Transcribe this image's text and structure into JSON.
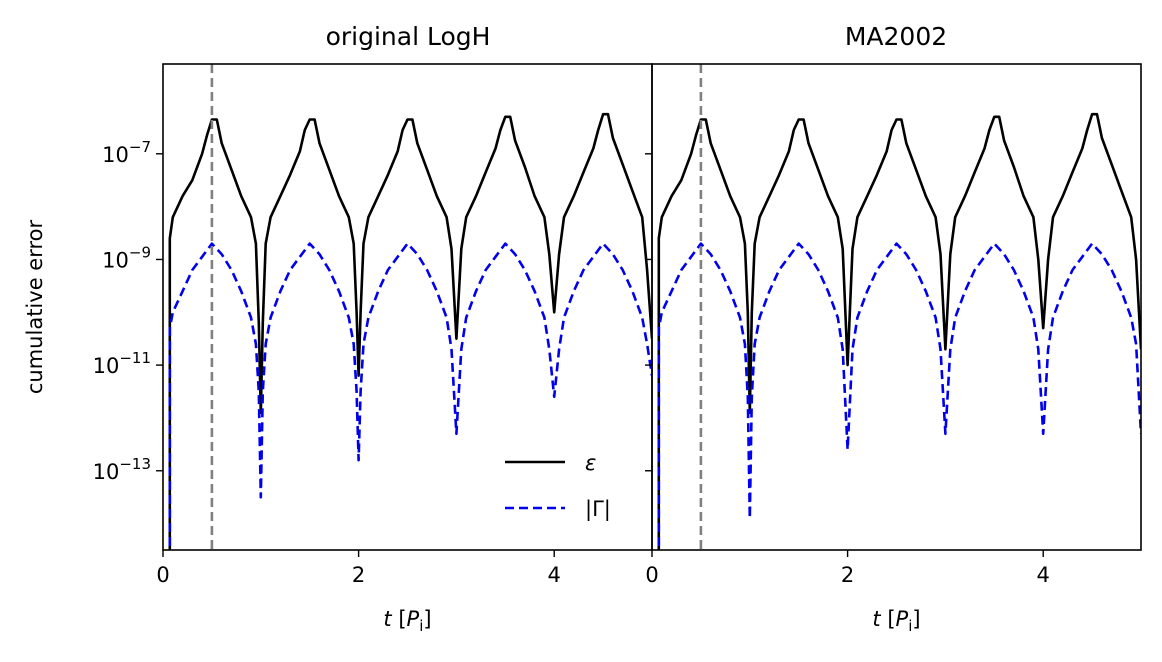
{
  "chart_data": [
    {
      "type": "line",
      "title": "original LogH",
      "xlabel_var": "t",
      "xlabel_unit": "P",
      "xlabel_sub": "i",
      "ylabel": "cumulative error",
      "xlim": [
        0,
        5
      ],
      "ylim_log10": [
        -14.5,
        -5.3
      ],
      "yscale": "log",
      "xticks": [
        0,
        2,
        4
      ],
      "yticks_exp": [
        -7,
        -9,
        -11,
        -13
      ],
      "vline_x": 0.5,
      "legend": {
        "position": "lower-right",
        "entries": [
          "ε",
          "|Γ|"
        ]
      },
      "series": [
        {
          "name": "ε",
          "style": "solid",
          "color": "#000000",
          "x": [
            0.07,
            0.1,
            0.2,
            0.3,
            0.4,
            0.45,
            0.5,
            0.55,
            0.6,
            0.7,
            0.8,
            0.9,
            0.95,
            0.98,
            1.0,
            1.02,
            1.05,
            1.1,
            1.2,
            1.3,
            1.4,
            1.45,
            1.5,
            1.55,
            1.6,
            1.7,
            1.8,
            1.9,
            1.95,
            1.98,
            2.0,
            2.02,
            2.05,
            2.1,
            2.2,
            2.3,
            2.4,
            2.45,
            2.5,
            2.55,
            2.6,
            2.7,
            2.8,
            2.9,
            2.95,
            3.0,
            3.05,
            3.1,
            3.2,
            3.3,
            3.4,
            3.45,
            3.5,
            3.55,
            3.6,
            3.7,
            3.8,
            3.9,
            3.95,
            4.0,
            4.05,
            4.1,
            4.2,
            4.3,
            4.4,
            4.45,
            4.5,
            4.55,
            4.6,
            4.7,
            4.8,
            4.9,
            4.95,
            5.0
          ],
          "log10": [
            -8.6,
            -8.2,
            -7.8,
            -7.5,
            -7.0,
            -6.65,
            -6.35,
            -6.35,
            -6.8,
            -7.3,
            -7.8,
            -8.2,
            -8.7,
            -10.2,
            -11.9,
            -10.2,
            -8.7,
            -8.2,
            -7.8,
            -7.4,
            -6.95,
            -6.55,
            -6.35,
            -6.35,
            -6.8,
            -7.3,
            -7.8,
            -8.2,
            -8.7,
            -10.0,
            -11.2,
            -10.0,
            -8.7,
            -8.2,
            -7.8,
            -7.4,
            -6.95,
            -6.55,
            -6.35,
            -6.35,
            -6.8,
            -7.3,
            -7.8,
            -8.2,
            -8.8,
            -10.5,
            -8.8,
            -8.2,
            -7.8,
            -7.35,
            -6.9,
            -6.55,
            -6.3,
            -6.3,
            -6.75,
            -7.25,
            -7.8,
            -8.2,
            -8.9,
            -10.0,
            -8.9,
            -8.2,
            -7.8,
            -7.35,
            -6.9,
            -6.55,
            -6.25,
            -6.25,
            -6.7,
            -7.2,
            -7.7,
            -8.2,
            -9.2,
            -10.5
          ]
        },
        {
          "name": "|Γ|",
          "style": "dashed",
          "color": "#0000ee",
          "x": [
            0.07,
            0.1,
            0.2,
            0.3,
            0.4,
            0.5,
            0.6,
            0.7,
            0.8,
            0.9,
            0.95,
            0.98,
            1.0,
            1.02,
            1.05,
            1.1,
            1.2,
            1.3,
            1.4,
            1.5,
            1.6,
            1.7,
            1.8,
            1.9,
            1.95,
            1.98,
            2.0,
            2.02,
            2.05,
            2.1,
            2.2,
            2.3,
            2.4,
            2.5,
            2.6,
            2.7,
            2.8,
            2.9,
            2.95,
            3.0,
            3.05,
            3.1,
            3.2,
            3.3,
            3.4,
            3.5,
            3.6,
            3.7,
            3.8,
            3.9,
            3.95,
            4.0,
            4.05,
            4.1,
            4.2,
            4.3,
            4.4,
            4.5,
            4.6,
            4.7,
            4.8,
            4.9,
            4.95,
            5.0
          ],
          "log10": [
            -10.3,
            -10.0,
            -9.6,
            -9.2,
            -8.95,
            -8.7,
            -8.9,
            -9.2,
            -9.6,
            -10.1,
            -10.6,
            -11.5,
            -13.5,
            -11.5,
            -10.6,
            -10.1,
            -9.6,
            -9.2,
            -8.95,
            -8.7,
            -8.9,
            -9.2,
            -9.6,
            -10.1,
            -10.6,
            -11.5,
            -12.8,
            -11.5,
            -10.6,
            -10.1,
            -9.6,
            -9.2,
            -8.95,
            -8.7,
            -8.9,
            -9.2,
            -9.6,
            -10.1,
            -10.7,
            -12.3,
            -10.7,
            -10.1,
            -9.6,
            -9.2,
            -8.95,
            -8.7,
            -8.9,
            -9.2,
            -9.6,
            -10.1,
            -10.7,
            -11.6,
            -10.7,
            -10.1,
            -9.6,
            -9.2,
            -8.95,
            -8.7,
            -8.9,
            -9.2,
            -9.6,
            -10.1,
            -10.6,
            -11.2
          ]
        }
      ]
    },
    {
      "type": "line",
      "title": "MA2002",
      "xlabel_var": "t",
      "xlabel_unit": "P",
      "xlabel_sub": "i",
      "xlim": [
        0,
        5
      ],
      "ylim_log10": [
        -14.5,
        -5.3
      ],
      "yscale": "log",
      "xticks": [
        0,
        2,
        4
      ],
      "vline_x": 0.5,
      "series": [
        {
          "name": "ε",
          "style": "solid",
          "color": "#000000",
          "x": [
            0.07,
            0.1,
            0.2,
            0.3,
            0.4,
            0.45,
            0.5,
            0.55,
            0.6,
            0.7,
            0.8,
            0.9,
            0.95,
            0.98,
            1.0,
            1.02,
            1.05,
            1.1,
            1.2,
            1.3,
            1.4,
            1.45,
            1.5,
            1.55,
            1.6,
            1.7,
            1.8,
            1.9,
            1.95,
            2.0,
            2.05,
            2.1,
            2.2,
            2.3,
            2.4,
            2.45,
            2.5,
            2.55,
            2.6,
            2.7,
            2.8,
            2.9,
            2.95,
            3.0,
            3.05,
            3.1,
            3.2,
            3.3,
            3.4,
            3.45,
            3.5,
            3.55,
            3.6,
            3.7,
            3.8,
            3.9,
            3.95,
            4.0,
            4.05,
            4.1,
            4.2,
            4.3,
            4.4,
            4.45,
            4.5,
            4.55,
            4.6,
            4.7,
            4.8,
            4.9,
            4.95,
            5.0
          ],
          "log10": [
            -8.6,
            -8.2,
            -7.8,
            -7.5,
            -7.0,
            -6.65,
            -6.35,
            -6.35,
            -6.8,
            -7.3,
            -7.8,
            -8.2,
            -8.7,
            -10.0,
            -11.9,
            -10.0,
            -8.7,
            -8.2,
            -7.8,
            -7.4,
            -6.95,
            -6.55,
            -6.35,
            -6.35,
            -6.8,
            -7.3,
            -7.8,
            -8.2,
            -8.8,
            -11.0,
            -8.8,
            -8.2,
            -7.8,
            -7.4,
            -6.95,
            -6.55,
            -6.35,
            -6.35,
            -6.8,
            -7.3,
            -7.8,
            -8.2,
            -8.9,
            -10.7,
            -8.9,
            -8.2,
            -7.8,
            -7.35,
            -6.9,
            -6.55,
            -6.3,
            -6.3,
            -6.75,
            -7.25,
            -7.8,
            -8.2,
            -9.0,
            -10.3,
            -9.0,
            -8.2,
            -7.8,
            -7.35,
            -6.9,
            -6.55,
            -6.25,
            -6.25,
            -6.7,
            -7.2,
            -7.7,
            -8.2,
            -9.0,
            -10.7
          ]
        },
        {
          "name": "|Γ|",
          "style": "dashed",
          "color": "#0000ee",
          "x": [
            0.07,
            0.1,
            0.2,
            0.3,
            0.4,
            0.5,
            0.6,
            0.7,
            0.8,
            0.9,
            0.95,
            0.98,
            1.0,
            1.02,
            1.05,
            1.1,
            1.2,
            1.3,
            1.4,
            1.5,
            1.6,
            1.7,
            1.8,
            1.9,
            1.95,
            2.0,
            2.05,
            2.1,
            2.2,
            2.3,
            2.4,
            2.5,
            2.6,
            2.7,
            2.8,
            2.9,
            2.95,
            3.0,
            3.05,
            3.1,
            3.2,
            3.3,
            3.4,
            3.5,
            3.6,
            3.7,
            3.8,
            3.9,
            3.95,
            4.0,
            4.05,
            4.1,
            4.2,
            4.3,
            4.4,
            4.5,
            4.6,
            4.7,
            4.8,
            4.9,
            4.95,
            5.0
          ],
          "log10": [
            -10.3,
            -10.0,
            -9.6,
            -9.2,
            -8.95,
            -8.7,
            -8.9,
            -9.2,
            -9.6,
            -10.1,
            -10.6,
            -11.6,
            -13.9,
            -11.6,
            -10.6,
            -10.1,
            -9.6,
            -9.2,
            -8.95,
            -8.7,
            -8.9,
            -9.2,
            -9.6,
            -10.1,
            -10.7,
            -12.6,
            -10.7,
            -10.1,
            -9.6,
            -9.2,
            -8.95,
            -8.7,
            -8.9,
            -9.2,
            -9.6,
            -10.1,
            -10.7,
            -12.3,
            -10.7,
            -10.1,
            -9.6,
            -9.2,
            -8.95,
            -8.7,
            -8.9,
            -9.2,
            -9.6,
            -10.1,
            -10.7,
            -12.3,
            -10.7,
            -10.1,
            -9.6,
            -9.2,
            -8.95,
            -8.7,
            -8.9,
            -9.2,
            -9.6,
            -10.1,
            -10.6,
            -12.3
          ]
        }
      ]
    }
  ]
}
